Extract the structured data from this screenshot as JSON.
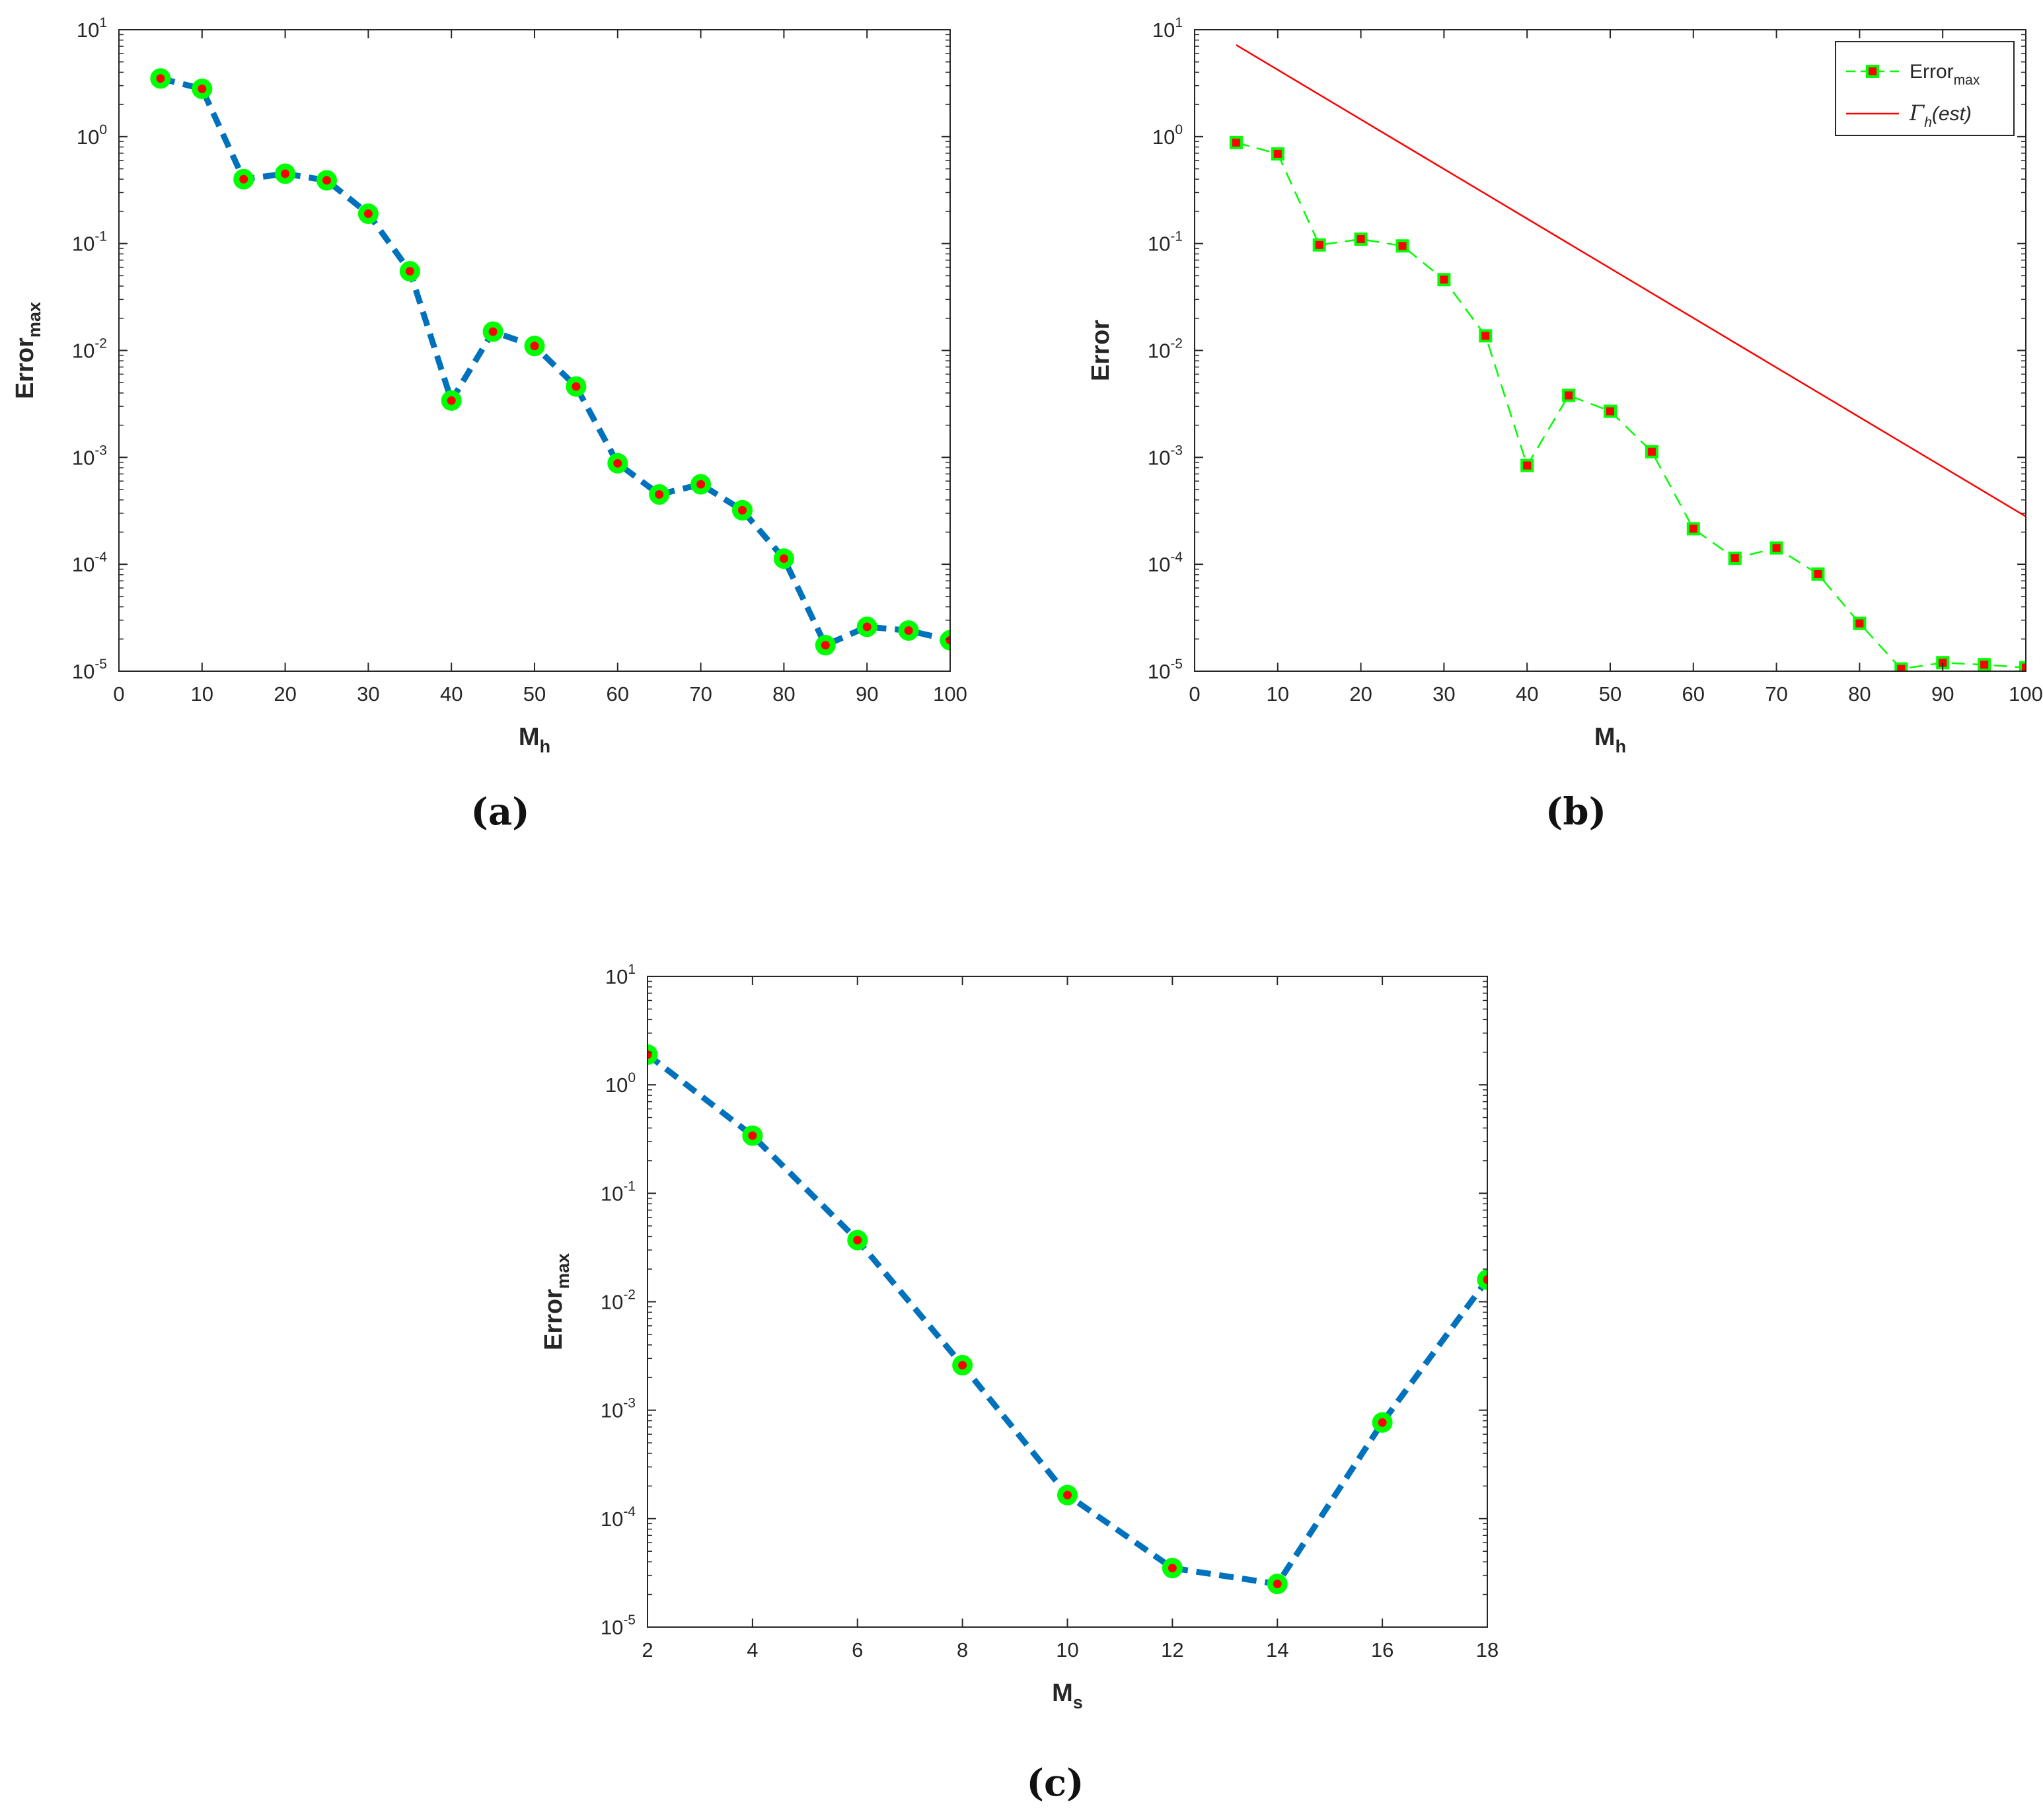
{
  "chart_data": [
    {
      "panel": "(a)",
      "type": "line",
      "title": "",
      "xlabel": "M",
      "xlabel_sub": "h",
      "ylabel": "Error",
      "ylabel_sub": "max",
      "xlim": [
        0,
        100
      ],
      "ylim": [
        1e-05,
        10
      ],
      "yscale": "log",
      "xticks": [
        0,
        10,
        20,
        30,
        40,
        50,
        60,
        70,
        80,
        90,
        100
      ],
      "ytick_exponents": [
        -5,
        -4,
        -3,
        -2,
        -1,
        0,
        1
      ],
      "grid": false,
      "series": [
        {
          "name": "Error_max",
          "line": "dashed thick",
          "line_color": "#0072bd",
          "marker": "circle",
          "marker_face": "#ff0000",
          "marker_edge": "#00ff00",
          "x": [
            5,
            10,
            15,
            20,
            25,
            30,
            35,
            40,
            45,
            50,
            55,
            60,
            65,
            70,
            75,
            80,
            85,
            90,
            95,
            100
          ],
          "values": [
            3.5,
            2.8,
            0.4,
            0.45,
            0.39,
            0.19,
            0.055,
            0.0034,
            0.015,
            0.011,
            0.0046,
            0.00088,
            0.00045,
            0.00056,
            0.00032,
            0.000113,
            1.75e-05,
            2.6e-05,
            2.4e-05,
            1.95e-05
          ]
        }
      ]
    },
    {
      "panel": "(b)",
      "type": "line",
      "title": "",
      "xlabel": "M",
      "xlabel_sub": "h",
      "ylabel": "Error",
      "ylabel_sub": "",
      "xlim": [
        0,
        100
      ],
      "ylim": [
        1e-05,
        10
      ],
      "yscale": "log",
      "xticks": [
        0,
        10,
        20,
        30,
        40,
        50,
        60,
        70,
        80,
        90,
        100
      ],
      "ytick_exponents": [
        -5,
        -4,
        -3,
        -2,
        -1,
        0,
        1
      ],
      "grid": false,
      "legend_position": "top-right",
      "series": [
        {
          "name": "Error",
          "name_sub": "max",
          "line": "dashed thin",
          "line_color": "#00ff00",
          "marker": "square",
          "marker_face": "#ff0000",
          "marker_edge": "#00ff00",
          "x": [
            5,
            10,
            15,
            20,
            25,
            30,
            35,
            40,
            45,
            50,
            55,
            60,
            65,
            70,
            75,
            80,
            85,
            90,
            95,
            100
          ],
          "values": [
            0.88,
            0.69,
            0.097,
            0.11,
            0.095,
            0.046,
            0.0137,
            0.00084,
            0.0038,
            0.0027,
            0.00113,
            0.000215,
            0.000114,
            0.000142,
            8.1e-05,
            2.8e-05,
            1.05e-05,
            1.2e-05,
            1.15e-05,
            1.08e-05
          ]
        },
        {
          "name": "Γ",
          "name_sub": "h",
          "name_suffix": "(est)",
          "line": "solid thin",
          "line_color": "#ff0000",
          "marker": "none",
          "x": [
            5,
            100
          ],
          "values": [
            7.2,
            0.00028
          ]
        }
      ]
    },
    {
      "panel": "(c)",
      "type": "line",
      "title": "",
      "xlabel": "M",
      "xlabel_sub": "s",
      "ylabel": "Error",
      "ylabel_sub": "max",
      "xlim": [
        2,
        18
      ],
      "ylim": [
        1e-05,
        10
      ],
      "yscale": "log",
      "xticks": [
        2,
        4,
        6,
        8,
        10,
        12,
        14,
        16,
        18
      ],
      "ytick_exponents": [
        -5,
        -4,
        -3,
        -2,
        -1,
        0,
        1
      ],
      "grid": false,
      "series": [
        {
          "name": "Error_max",
          "line": "dashed thick",
          "line_color": "#0072bd",
          "marker": "circle",
          "marker_face": "#ff0000",
          "marker_edge": "#00ff00",
          "x": [
            2,
            4,
            6,
            8,
            10,
            12,
            14,
            16,
            18
          ],
          "values": [
            1.9,
            0.34,
            0.037,
            0.0026,
            0.000165,
            3.5e-05,
            2.5e-05,
            0.00077,
            0.016
          ]
        }
      ]
    }
  ]
}
